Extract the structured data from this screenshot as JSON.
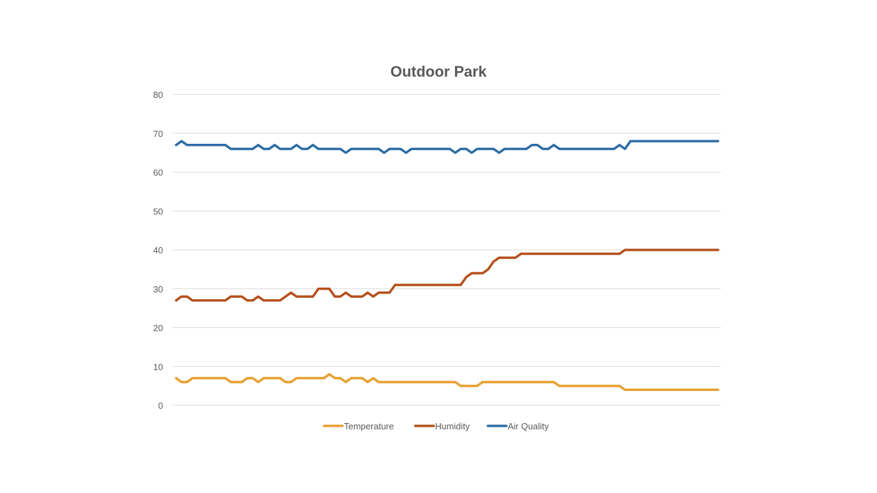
{
  "chart_data": {
    "type": "line",
    "title": "Outdoor Park",
    "xlabel": "",
    "ylabel": "",
    "ylim": [
      0,
      80
    ],
    "yticks": [
      0,
      10,
      20,
      30,
      40,
      50,
      60,
      70,
      80
    ],
    "grid": true,
    "legend_position": "bottom",
    "series": [
      {
        "name": "Temperature",
        "color": "#e7a030",
        "values": [
          7,
          6,
          6,
          7,
          7,
          7,
          7,
          7,
          7,
          7,
          6,
          6,
          6,
          7,
          7,
          6,
          7,
          7,
          7,
          7,
          6,
          6,
          7,
          7,
          7,
          7,
          7,
          7,
          8,
          7,
          7,
          6,
          7,
          7,
          7,
          6,
          7,
          6,
          6,
          6,
          6,
          6,
          6,
          6,
          6,
          6,
          6,
          6,
          6,
          6,
          6,
          6,
          5,
          5,
          5,
          5,
          6,
          6,
          6,
          6,
          6,
          6,
          6,
          6,
          6,
          6,
          6,
          6,
          6,
          6,
          5,
          5,
          5,
          5,
          5,
          5,
          5,
          5,
          5,
          5,
          5,
          5,
          4,
          4,
          4,
          4,
          4,
          4,
          4,
          4,
          4,
          4,
          4,
          4,
          4,
          4,
          4,
          4,
          4,
          4
        ]
      },
      {
        "name": "Humidity",
        "color": "#b5501c",
        "values": [
          27,
          28,
          28,
          27,
          27,
          27,
          27,
          27,
          27,
          27,
          28,
          28,
          28,
          27,
          27,
          28,
          27,
          27,
          27,
          27,
          28,
          29,
          28,
          28,
          28,
          28,
          30,
          30,
          30,
          28,
          28,
          29,
          28,
          28,
          28,
          29,
          28,
          29,
          29,
          29,
          31,
          31,
          31,
          31,
          31,
          31,
          31,
          31,
          31,
          31,
          31,
          31,
          31,
          33,
          34,
          34,
          34,
          35,
          37,
          38,
          38,
          38,
          38,
          39,
          39,
          39,
          39,
          39,
          39,
          39,
          39,
          39,
          39,
          39,
          39,
          39,
          39,
          39,
          39,
          39,
          39,
          39,
          40,
          40,
          40,
          40,
          40,
          40,
          40,
          40,
          40,
          40,
          40,
          40,
          40,
          40,
          40,
          40,
          40,
          40
        ]
      },
      {
        "name": "Air Quality",
        "color": "#2e6da4",
        "values": [
          67,
          68,
          67,
          67,
          67,
          67,
          67,
          67,
          67,
          67,
          66,
          66,
          66,
          66,
          66,
          67,
          66,
          66,
          67,
          66,
          66,
          66,
          67,
          66,
          66,
          67,
          66,
          66,
          66,
          66,
          66,
          65,
          66,
          66,
          66,
          66,
          66,
          66,
          65,
          66,
          66,
          66,
          65,
          66,
          66,
          66,
          66,
          66,
          66,
          66,
          66,
          65,
          66,
          66,
          65,
          66,
          66,
          66,
          66,
          65,
          66,
          66,
          66,
          66,
          66,
          67,
          67,
          66,
          66,
          67,
          66,
          66,
          66,
          66,
          66,
          66,
          66,
          66,
          66,
          66,
          66,
          67,
          66,
          68,
          68,
          68,
          68,
          68,
          68,
          68,
          68,
          68,
          68,
          68,
          68,
          68,
          68,
          68,
          68,
          68
        ]
      }
    ]
  }
}
